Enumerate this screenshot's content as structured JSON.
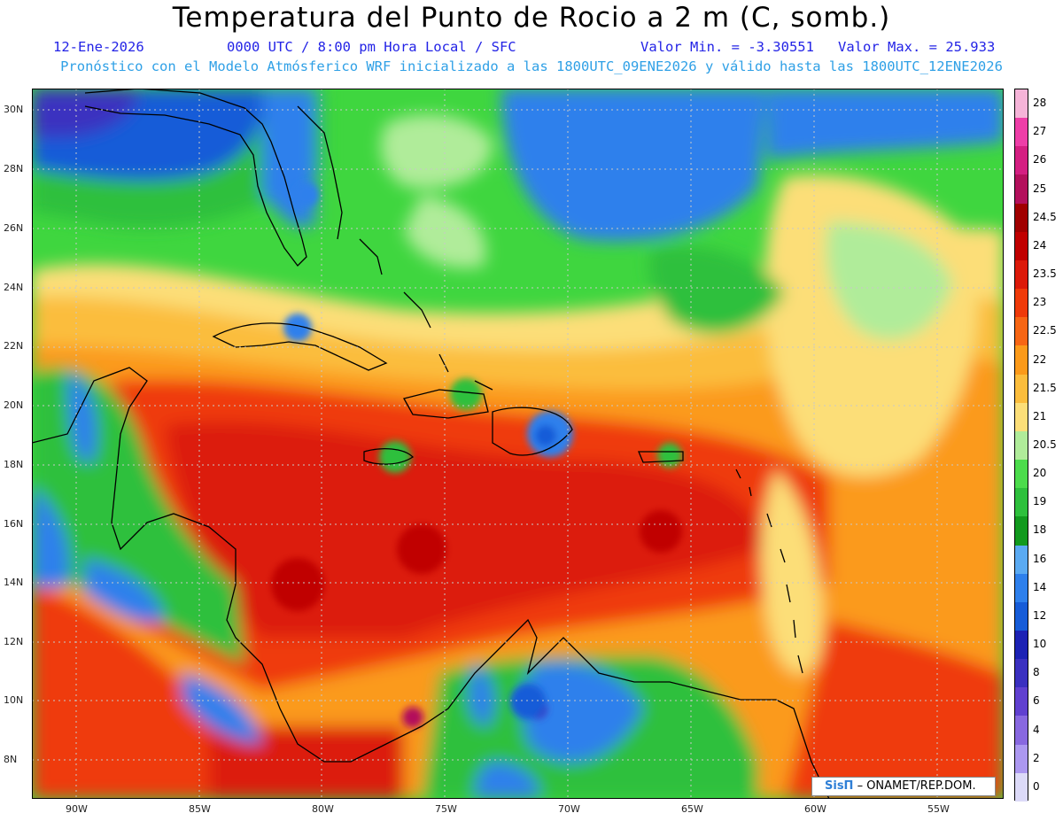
{
  "header": {
    "title": "Temperatura del Punto de Rocio a 2 m (C, somb.)",
    "date": "12-Ene-2026",
    "time": "0000 UTC / 8:00 pm Hora Local / SFC",
    "min": "Valor Min. = -3.30551",
    "max": "Valor Max. = 25.933",
    "subtitle": "Pronóstico con el Modelo Atmósferico WRF inicializado a las 1800UTC_09ENE2026 y válido hasta las  1800UTC_12ENE2026"
  },
  "map": {
    "lon_range": [
      -92.0,
      -52.5
    ],
    "lat_range": [
      6.8,
      30.8
    ],
    "lon_ticks": [
      "90W",
      "85W",
      "80W",
      "75W",
      "70W",
      "65W",
      "60W",
      "55W"
    ],
    "lat_ticks": [
      "30N",
      "28N",
      "26N",
      "24N",
      "22N",
      "20N",
      "18N",
      "16N",
      "14N",
      "12N",
      "10N",
      "8N"
    ],
    "ocean_color": "#3fd63f",
    "land_outline_color": "#000000"
  },
  "colorbar": {
    "levels": [
      "28",
      "27",
      "26",
      "25",
      "24.5",
      "24",
      "23.5",
      "23",
      "22.5",
      "22",
      "21.5",
      "21",
      "20.5",
      "20",
      "19",
      "18",
      "16",
      "14",
      "12",
      "10",
      "8",
      "6",
      "4",
      "2",
      "0"
    ],
    "colors": [
      "#f5b4d8",
      "#ee3ea8",
      "#d41f82",
      "#b3105c",
      "#a00000",
      "#c00000",
      "#dc1a0a",
      "#ef3a0a",
      "#f76614",
      "#fb9a1a",
      "#fbbd3c",
      "#fcde78",
      "#b0ec9a",
      "#4cdc4c",
      "#2ec03c",
      "#129a1e",
      "#5aaaf2",
      "#2e80ec",
      "#165cd8",
      "#1c22b4",
      "#3a30c0",
      "#6040d0",
      "#8868e0",
      "#ac98f0",
      "#dcdaf8"
    ]
  },
  "credit": {
    "logo": "SisΠ",
    "text": " – ONAMET/REP.DOM."
  }
}
